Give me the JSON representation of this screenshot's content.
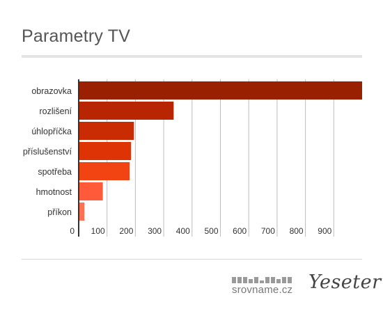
{
  "header": {
    "title": "Parametry TV"
  },
  "chart_data": {
    "type": "bar",
    "orientation": "horizontal",
    "title": "Parametry TV",
    "categories": [
      "obrazovka",
      "rozlišení",
      "úhlopříčka",
      "příslušenství",
      "spotřeba",
      "hmotnost",
      "příkon"
    ],
    "values": [
      1000,
      335,
      195,
      185,
      180,
      85,
      20
    ],
    "colors": [
      "#992000",
      "#b72600",
      "#c92b03",
      "#de3304",
      "#f24312",
      "#ff5a39",
      "#ff7153"
    ],
    "xticks": [
      0,
      100,
      200,
      300,
      400,
      500,
      600,
      700,
      800,
      900
    ],
    "xlim": [
      0,
      1000
    ],
    "grid": "vertical",
    "legend": "none"
  },
  "footer": {
    "brand_left": "srovname.cz",
    "brand_right": "Yeseter"
  }
}
